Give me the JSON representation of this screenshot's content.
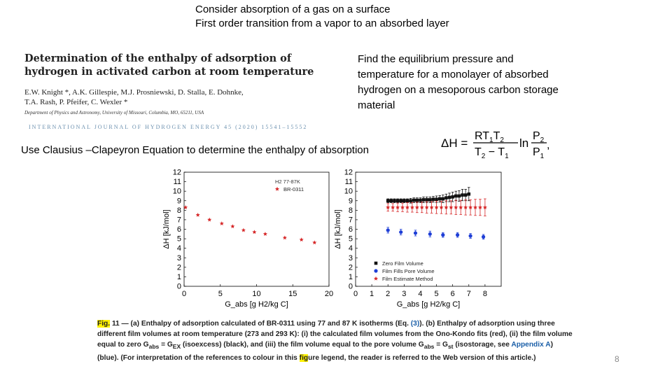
{
  "heading": {
    "line1": "Consider absorption of a gas on a surface",
    "line2": "First order transition from a vapor to an absorbed layer"
  },
  "paper": {
    "title_line1": "Determination of the enthalpy of adsorption of",
    "title_line2": "hydrogen in activated carbon at room temperature",
    "authors_line1": "E.W. Knight *, A.K. Gillespie, M.J. Prosniewski, D. Stalla, E. Dohnke,",
    "authors_line2": "T.A. Rash, P. Pfeifer, C. Wexler *",
    "affiliation": "Department of Physics and Astronomy, University of Missouri, Columbia, MO, 65211, USA",
    "journal": "INTERNATIONAL JOURNAL OF HYDROGEN ENERGY 45 (2020) 15541–15552"
  },
  "task": {
    "text": "Find the equilibrium pressure and temperature for a monolayer of absorbed hydrogen on a mesoporous carbon storage material"
  },
  "clausius": {
    "text": "Use Clausius –Clapeyron Equation to determine the enthalpy of absorption"
  },
  "equation": {
    "lhs": "ΔH =",
    "num": "RT",
    "num_sub1": "1",
    "num_mid": "T",
    "num_sub2": "2",
    "den": "T",
    "den_sub2": "2",
    "den_mid": " − T",
    "den_sub1": "1",
    "ln": "ln",
    "p_num": "P",
    "p_num_sub": "2",
    "p_den": "P",
    "p_den_sub": "1",
    "tail": ","
  },
  "caption": {
    "fig": "Fig.",
    "part1": " 11 — (a) Enthalpy of adsorption calculated of BR-0311 using 77 and 87 K isotherms (Eq. ",
    "eqref": "(3)",
    "part2": "). (b) Enthalpy of adsorption using three different film volumes at room temperature (273 and 293 K): (i) the calculated film volumes from the Ono-Kondo fits (red), (ii) the film volume equal to zero G",
    "sub_abs": "abs",
    "eq1": " = G",
    "sub_ex": "EX",
    "part3": " (isoexcess) (black), and (iii) the film volume equal to the pore volume G",
    "sub_abs2": "abs",
    "eq2": " = G",
    "sub_st": "st",
    "part4": " (isostorage, see ",
    "appendix": "Appendix A",
    "part5": ") (blue). (For interpretation of the references to colour in this ",
    "fig2": "fig",
    "part6": "ure legend, the reader is referred to the Web version of this article.)"
  },
  "page_number": "8",
  "chart_data": [
    {
      "type": "scatter",
      "title": "",
      "xlabel": "G_abs [g H2/kg C]",
      "ylabel": "ΔH [kJ/mol]",
      "xlim": [
        0,
        20
      ],
      "ylim": [
        0,
        12
      ],
      "xticks": [
        0,
        5,
        10,
        15,
        20
      ],
      "yticks": [
        0,
        1,
        2,
        3,
        4,
        5,
        6,
        7,
        8,
        9,
        10,
        11,
        12
      ],
      "legend_title": "H2 77-87K",
      "legend_position": "top-right",
      "series": [
        {
          "name": "BR-0311",
          "color": "#d62728",
          "marker": "star",
          "x": [
            0.2,
            1.9,
            3.5,
            5.2,
            6.7,
            8.2,
            9.7,
            11.2,
            13.9,
            16.2,
            18.0
          ],
          "y": [
            8.3,
            7.5,
            7.0,
            6.6,
            6.3,
            5.9,
            5.7,
            5.5,
            5.1,
            4.9,
            4.6
          ]
        }
      ]
    },
    {
      "type": "scatter",
      "title": "",
      "xlabel": "G_abs [g H2/kg C]",
      "ylabel": "ΔH [kJ/mol]",
      "xlim": [
        0,
        9
      ],
      "ylim": [
        0,
        12
      ],
      "xticks": [
        0,
        1,
        2,
        3,
        4,
        5,
        6,
        7,
        8
      ],
      "yticks": [
        0,
        1,
        2,
        3,
        4,
        5,
        6,
        7,
        8,
        9,
        10,
        11,
        12
      ],
      "legend_position": "bottom-left",
      "series": [
        {
          "name": "Zero Film Volume",
          "color": "#111111",
          "marker": "square",
          "x": [
            2.0,
            2.2,
            2.4,
            2.6,
            2.8,
            3.0,
            3.2,
            3.4,
            3.6,
            3.8,
            4.0,
            4.2,
            4.4,
            4.6,
            4.8,
            5.0,
            5.2,
            5.4,
            5.6,
            5.8,
            6.0,
            6.2,
            6.4,
            6.6,
            6.8,
            7.0
          ],
          "y": [
            9.0,
            9.0,
            9.0,
            9.0,
            9.0,
            9.0,
            9.0,
            9.0,
            9.05,
            9.05,
            9.05,
            9.1,
            9.1,
            9.1,
            9.15,
            9.15,
            9.2,
            9.2,
            9.3,
            9.35,
            9.4,
            9.5,
            9.5,
            9.6,
            9.6,
            9.7
          ],
          "err": [
            0.2,
            0.2,
            0.2,
            0.2,
            0.2,
            0.2,
            0.2,
            0.25,
            0.25,
            0.25,
            0.25,
            0.3,
            0.3,
            0.3,
            0.3,
            0.35,
            0.35,
            0.4,
            0.4,
            0.45,
            0.5,
            0.5,
            0.55,
            0.6,
            0.6,
            0.7
          ]
        },
        {
          "name": "Film Fills Pore Volume",
          "color": "#1f3fd6",
          "marker": "circle",
          "x": [
            2.0,
            2.8,
            3.7,
            4.6,
            5.4,
            6.3,
            7.1,
            7.9
          ],
          "y": [
            5.9,
            5.7,
            5.6,
            5.5,
            5.4,
            5.4,
            5.3,
            5.2
          ],
          "err": [
            0.3,
            0.3,
            0.3,
            0.3,
            0.25,
            0.25,
            0.25,
            0.25
          ]
        },
        {
          "name": "Film Estimate Method",
          "color": "#d62728",
          "marker": "star",
          "x": [
            2.0,
            2.3,
            2.6,
            2.9,
            3.2,
            3.5,
            3.8,
            4.1,
            4.4,
            4.7,
            5.0,
            5.3,
            5.6,
            5.9,
            6.2,
            6.5,
            6.8,
            7.1,
            7.4,
            7.7,
            8.0
          ],
          "y": [
            8.3,
            8.3,
            8.3,
            8.3,
            8.3,
            8.3,
            8.3,
            8.3,
            8.3,
            8.3,
            8.3,
            8.3,
            8.3,
            8.3,
            8.3,
            8.3,
            8.3,
            8.3,
            8.3,
            8.3,
            8.3
          ],
          "err": [
            0.4,
            0.4,
            0.45,
            0.45,
            0.5,
            0.5,
            0.55,
            0.55,
            0.6,
            0.6,
            0.65,
            0.65,
            0.7,
            0.7,
            0.75,
            0.75,
            0.8,
            0.8,
            0.85,
            0.85,
            0.9
          ]
        }
      ]
    }
  ]
}
